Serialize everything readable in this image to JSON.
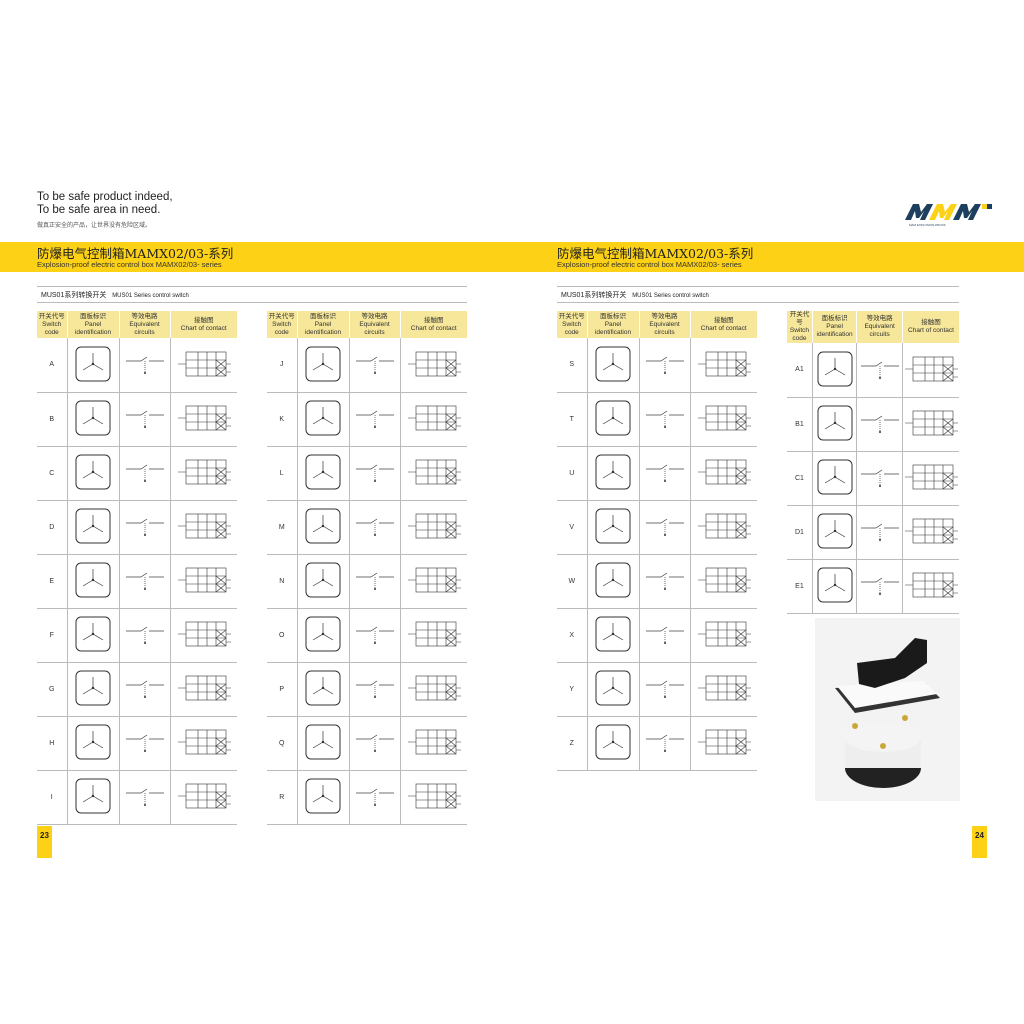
{
  "tagline": {
    "line1": "To be safe product indeed,",
    "line2": "To be safe area in need.",
    "chinese": "做真正安全的产品，让世界没有危险区域。"
  },
  "logo": {
    "text": "MAM",
    "subtitle": "MAM EXPLOSION-PROOF",
    "colors": {
      "dark": "#1d3f5e",
      "accent": "#fcd116"
    }
  },
  "band": {
    "title": "防爆电气控制箱MAMX02/03-系列",
    "subtitle": "Explosion-proof electric control box MAMX02/03- series",
    "color": "#fcd116"
  },
  "section": {
    "cn": "MUS01系列转换开关",
    "en": "MUS01 Series control switch"
  },
  "headers": {
    "code": {
      "cn": "开关代号",
      "en1": "Switch",
      "en2": "code"
    },
    "panel": {
      "cn": "面板标识",
      "en1": "Panel",
      "en2": "identification"
    },
    "circuit": {
      "cn": "等效电路",
      "en1": "Equivalent",
      "en2": "circuits"
    },
    "chart": {
      "cn": "接触图",
      "en1": "Chart of contact"
    }
  },
  "tables": [
    {
      "codes": [
        "A",
        "B",
        "C",
        "D",
        "E",
        "F",
        "G",
        "H",
        "I"
      ]
    },
    {
      "codes": [
        "J",
        "K",
        "L",
        "M",
        "N",
        "O",
        "P",
        "Q",
        "R"
      ]
    },
    {
      "codes": [
        "S",
        "T",
        "U",
        "V",
        "W",
        "X",
        "Y",
        "Z"
      ]
    },
    {
      "codes": [
        "A1",
        "B1",
        "C1",
        "D1",
        "E1"
      ]
    }
  ],
  "pages": {
    "left": "23",
    "right": "24"
  }
}
